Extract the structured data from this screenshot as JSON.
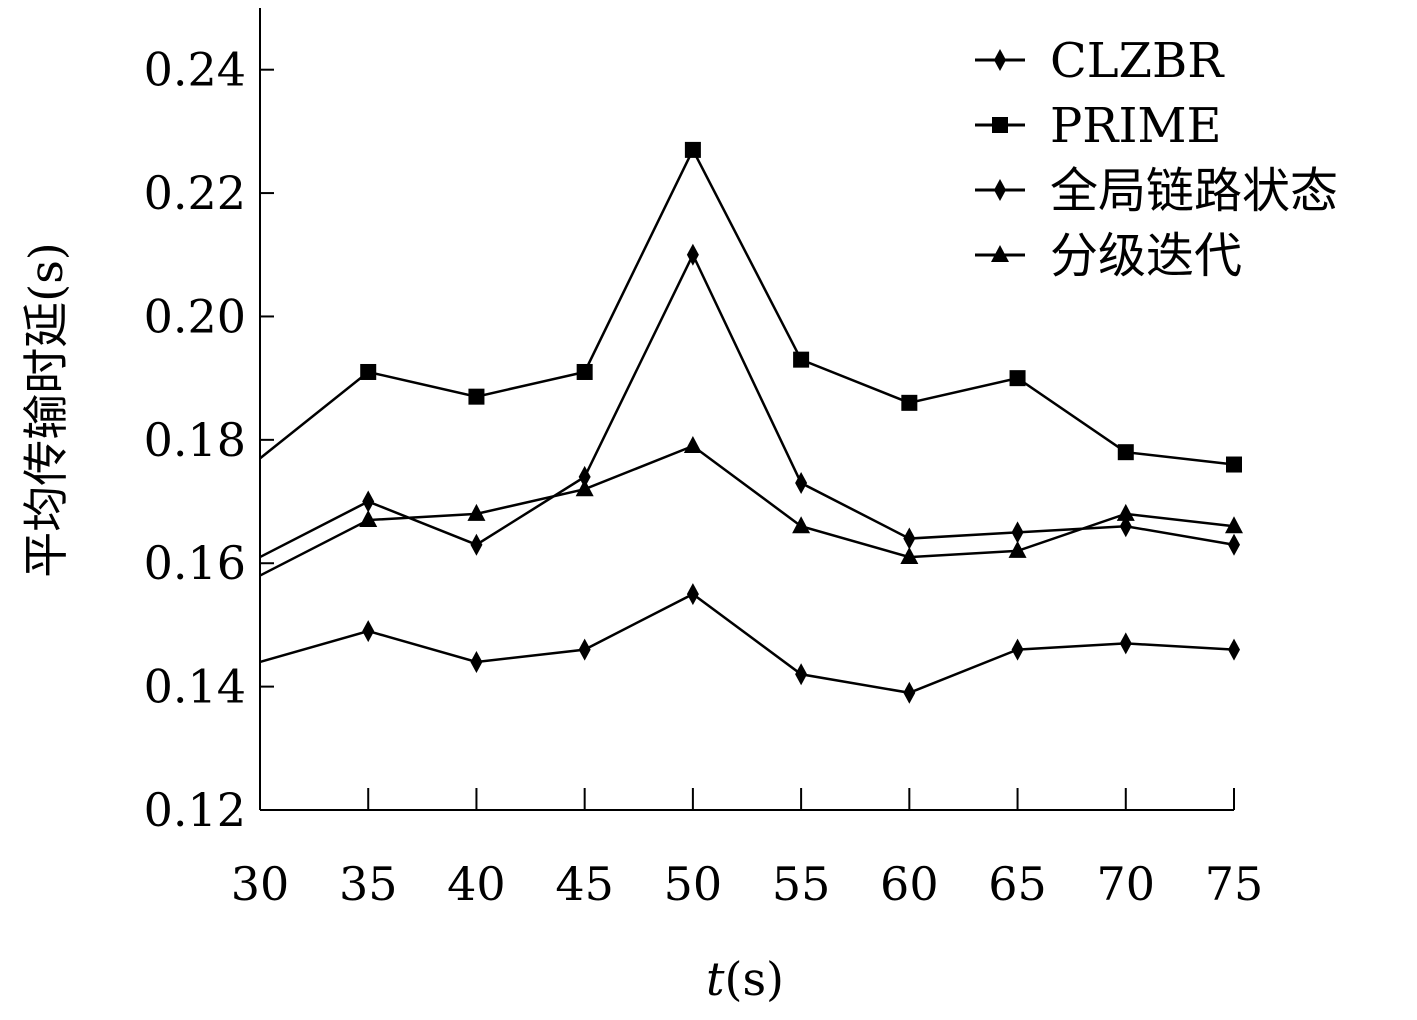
{
  "chart_data": {
    "type": "line",
    "xlabel": "t(s)",
    "xlabel_italic_part": "t",
    "xlabel_rest": "(s)",
    "ylabel": "平均传输时延(s)",
    "x": [
      30,
      35,
      40,
      45,
      50,
      55,
      60,
      65,
      70,
      75
    ],
    "xlim": [
      30,
      75
    ],
    "ylim": [
      0.12,
      0.25
    ],
    "xticks": [
      "30",
      "35",
      "40",
      "45",
      "50",
      "55",
      "60",
      "65",
      "70",
      "75"
    ],
    "yticks": [
      "0.12",
      "0.14",
      "0.16",
      "0.18",
      "0.20",
      "0.22",
      "0.24"
    ],
    "ytick_values": [
      0.12,
      0.14,
      0.16,
      0.18,
      0.2,
      0.22,
      0.24
    ],
    "legend_position": "top-right",
    "grid": false,
    "color": "#000000",
    "series": [
      {
        "name": "CLZBR",
        "marker": "diamond",
        "values": [
          0.144,
          0.149,
          0.144,
          0.146,
          0.155,
          0.142,
          0.139,
          0.146,
          0.147,
          0.146
        ]
      },
      {
        "name": "PRIME",
        "marker": "square",
        "values": [
          0.177,
          0.191,
          0.187,
          0.191,
          0.227,
          0.193,
          0.186,
          0.19,
          0.178,
          0.176
        ]
      },
      {
        "name": "全局链路状态",
        "marker": "diamond",
        "values": [
          0.161,
          0.17,
          0.163,
          0.174,
          0.21,
          0.173,
          0.164,
          0.165,
          0.166,
          0.163
        ]
      },
      {
        "name": "分级迭代",
        "marker": "triangle",
        "values": [
          0.158,
          0.167,
          0.168,
          0.172,
          0.179,
          0.166,
          0.161,
          0.162,
          0.168,
          0.166
        ]
      }
    ]
  }
}
